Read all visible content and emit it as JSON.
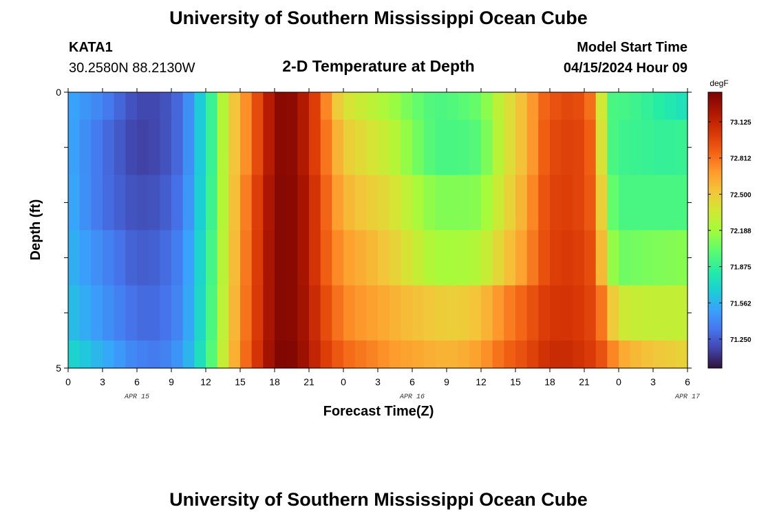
{
  "header": {
    "title": "University of Southern Mississippi Ocean Cube",
    "station": "KATA1",
    "coords": "30.2580N  88.2130W",
    "subtitle": "2-D Temperature at Depth",
    "model_label": "Model Start Time",
    "model_time": "04/15/2024 Hour 09"
  },
  "footer": {
    "title": "University of Southern Mississippi Ocean Cube"
  },
  "colorbar": {
    "unit": "degF",
    "ticks": [
      "73.125",
      "72.812",
      "72.500",
      "72.188",
      "71.875",
      "71.562",
      "71.250"
    ],
    "tick_values": [
      73.125,
      72.812,
      72.5,
      72.188,
      71.875,
      71.562,
      71.25
    ],
    "min": 71.0,
    "max": 73.38
  },
  "chart_data": {
    "type": "heatmap",
    "title": "2-D Temperature at Depth",
    "xlabel": "Forecast Time(Z)",
    "ylabel": "Depth (ft)",
    "x_start": "04/15/2024 00Z",
    "x_step_hours": 1,
    "x_ticks": [
      "0",
      "3",
      "6",
      "9",
      "12",
      "15",
      "18",
      "21",
      "0",
      "3",
      "6",
      "9",
      "12",
      "15",
      "18",
      "21",
      "0",
      "3",
      "6"
    ],
    "date_labels": [
      {
        "text": "APR 15",
        "hour": 6
      },
      {
        "text": "APR 16",
        "hour": 30
      },
      {
        "text": "APR 17",
        "hour": 54
      }
    ],
    "y_ticks": [
      "0",
      "5"
    ],
    "ylim": [
      0,
      5
    ],
    "xlim": [
      0,
      54
    ],
    "depths_ft": [
      0.0,
      1.0,
      2.0,
      3.0,
      4.0,
      5.0
    ],
    "units": "degF",
    "anchors_hour": [
      0,
      3,
      6,
      8,
      10,
      11,
      12,
      13,
      14,
      15,
      16,
      17,
      18,
      19,
      20,
      21,
      22,
      23,
      24,
      26,
      28,
      30,
      32,
      34,
      36,
      38,
      40,
      41,
      42,
      43,
      44,
      45,
      46,
      47,
      48,
      50,
      52,
      54
    ],
    "anchors_by_depth": [
      [
        71.53,
        71.38,
        71.18,
        71.18,
        71.32,
        71.55,
        71.75,
        72.05,
        72.45,
        72.6,
        72.85,
        73.05,
        73.3,
        73.35,
        73.28,
        73.1,
        72.9,
        72.6,
        72.4,
        72.3,
        72.2,
        72.05,
        71.95,
        71.98,
        72.05,
        72.35,
        72.6,
        72.8,
        72.9,
        72.95,
        72.98,
        72.9,
        72.75,
        71.95,
        71.95,
        71.9,
        71.82,
        71.75
      ],
      [
        71.53,
        71.32,
        71.15,
        71.18,
        71.32,
        71.55,
        71.75,
        72.05,
        72.45,
        72.6,
        72.85,
        73.05,
        73.3,
        73.35,
        73.28,
        73.1,
        72.9,
        72.7,
        72.5,
        72.4,
        72.3,
        72.1,
        71.95,
        71.95,
        72.0,
        72.35,
        72.6,
        72.8,
        72.95,
        72.98,
        73.0,
        72.95,
        72.8,
        71.98,
        71.92,
        71.9,
        71.88,
        71.9
      ],
      [
        71.55,
        71.32,
        71.2,
        71.22,
        71.35,
        71.57,
        71.78,
        72.05,
        72.45,
        72.65,
        72.9,
        73.1,
        73.32,
        73.35,
        73.3,
        73.15,
        72.95,
        72.75,
        72.6,
        72.5,
        72.42,
        72.25,
        72.1,
        72.1,
        72.12,
        72.4,
        72.65,
        72.85,
        72.98,
        73.0,
        73.0,
        72.95,
        72.85,
        72.1,
        71.95,
        71.95,
        71.95,
        71.95
      ],
      [
        71.57,
        71.4,
        71.25,
        71.27,
        71.4,
        71.6,
        71.8,
        72.08,
        72.45,
        72.68,
        72.9,
        73.12,
        73.32,
        73.35,
        73.3,
        73.15,
        72.95,
        72.8,
        72.68,
        72.6,
        72.5,
        72.35,
        72.2,
        72.2,
        72.25,
        72.5,
        72.7,
        72.88,
        72.98,
        73.02,
        73.02,
        72.98,
        72.9,
        72.25,
        72.05,
        72.08,
        72.1,
        72.12
      ],
      [
        71.62,
        71.45,
        71.3,
        71.3,
        71.42,
        71.62,
        71.82,
        72.1,
        72.47,
        72.7,
        72.92,
        73.12,
        73.32,
        73.35,
        73.3,
        73.18,
        73.0,
        72.88,
        72.75,
        72.68,
        72.62,
        72.55,
        72.5,
        72.48,
        72.55,
        72.75,
        72.88,
        72.98,
        73.03,
        73.05,
        73.05,
        73.0,
        72.95,
        72.65,
        72.35,
        72.3,
        72.3,
        72.3
      ],
      [
        71.72,
        71.55,
        71.38,
        71.35,
        71.48,
        71.65,
        71.85,
        72.12,
        72.5,
        72.72,
        72.95,
        73.15,
        73.33,
        73.38,
        73.32,
        73.2,
        73.05,
        72.95,
        72.85,
        72.78,
        72.7,
        72.65,
        72.6,
        72.6,
        72.68,
        72.85,
        72.95,
        73.03,
        73.08,
        73.1,
        73.08,
        73.03,
        73.0,
        72.85,
        72.65,
        72.55,
        72.5,
        72.45
      ]
    ]
  }
}
